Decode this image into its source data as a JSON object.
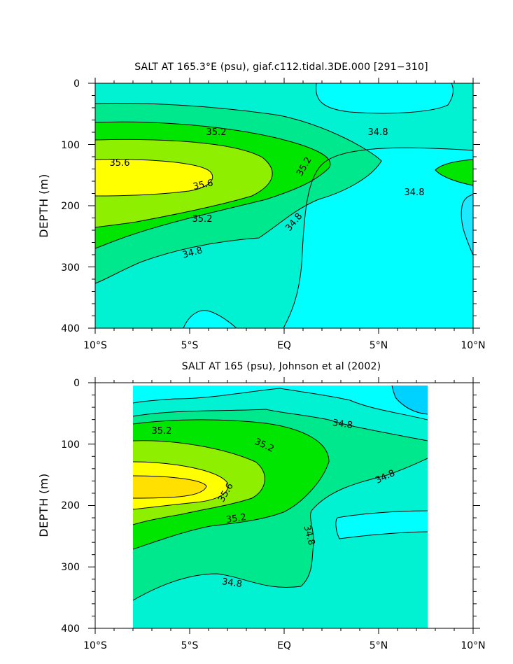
{
  "chart_data": [
    {
      "type": "heatmap",
      "title": "SALT AT 165.3°E (psu), giaf.c112.tidal.3DE.000 [291−310]",
      "ylabel": "DEPTH (m)",
      "xlabel": "",
      "x_ticks": [
        "10°S",
        "5°S",
        "EQ",
        "5°N",
        "10°N"
      ],
      "y_ticks": [
        "0",
        "100",
        "200",
        "300",
        "400"
      ],
      "xlim": [
        -10,
        10
      ],
      "ylim": [
        400,
        0
      ],
      "contour_labels": [
        "35.6",
        "35.6",
        "35.2",
        "35.2",
        "35.2",
        "34.8",
        "34.8",
        "34.8",
        "34.8"
      ],
      "colors": {
        "c1": "#00ffff",
        "c2": "#00f2d2",
        "c3": "#00e88e",
        "c4": "#00e600",
        "c5": "#8fef00",
        "c6": "#ffff00"
      }
    },
    {
      "type": "heatmap",
      "title": "SALT AT 165 (psu), Johnson et al (2002)",
      "ylabel": "DEPTH (m)",
      "xlabel": "",
      "x_ticks": [
        "10°S",
        "5°S",
        "EQ",
        "5°N",
        "10°N"
      ],
      "y_ticks": [
        "0",
        "100",
        "200",
        "300",
        "400"
      ],
      "xlim": [
        -10,
        10
      ],
      "ylim": [
        400,
        0
      ],
      "data_extent_x": [
        -8,
        8
      ],
      "contour_labels": [
        "35.2",
        "35.2",
        "35.6",
        "35.2",
        "34.8",
        "34.8",
        "34.8",
        "34.8"
      ],
      "colors": {
        "c0": "#00d2ff",
        "c1": "#00ffff",
        "c2": "#00f2d2",
        "c3": "#00e88e",
        "c4": "#00e600",
        "c5": "#8fef00",
        "c6": "#ffff00",
        "c7": "#ffe000"
      }
    }
  ]
}
